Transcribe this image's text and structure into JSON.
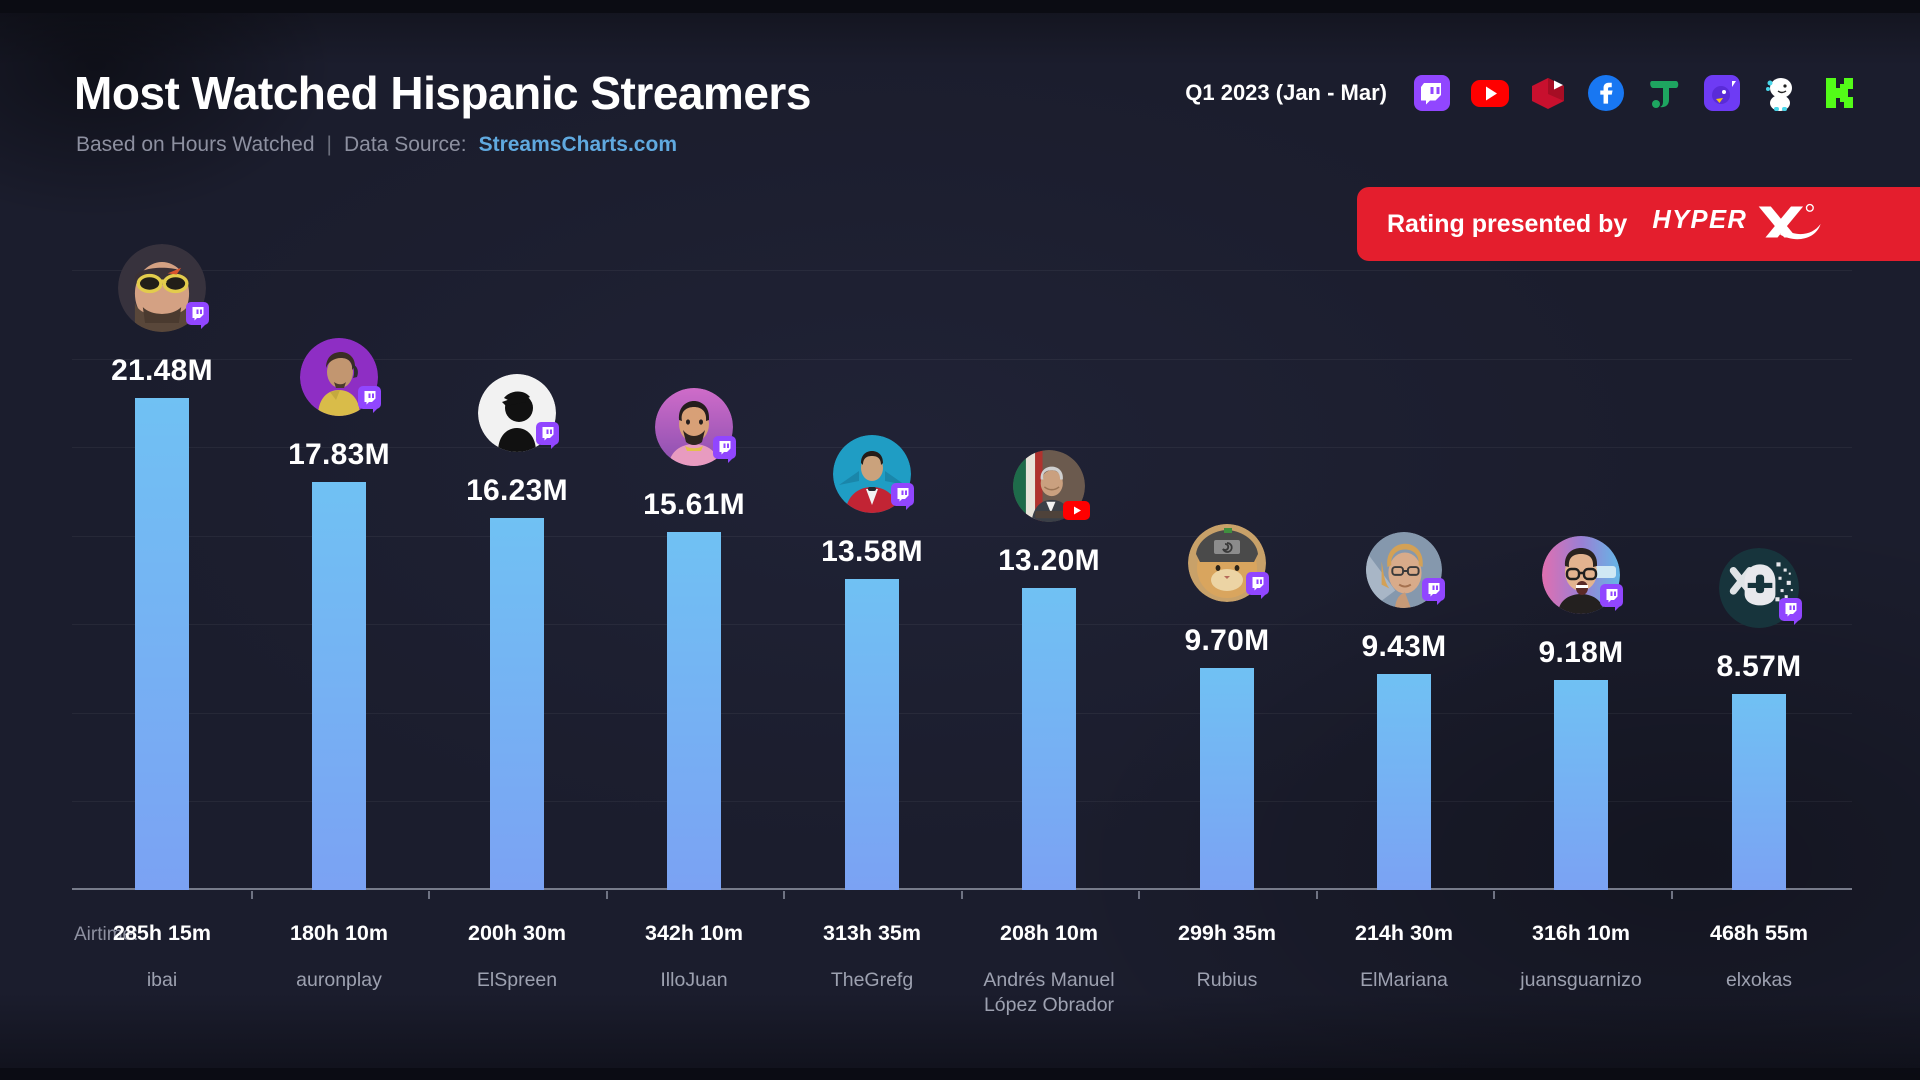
{
  "header": {
    "title": "Most Watched Hispanic Streamers",
    "subtitle_left": "Based on Hours Watched",
    "subtitle_separator": "|",
    "subtitle_source_label": "Data Source:",
    "subtitle_source": "StreamsCharts.com",
    "period": "Q1 2023 (Jan - Mar)",
    "platform_icons": [
      "twitch",
      "youtube",
      "youtube-gaming",
      "facebook",
      "trovo",
      "nimo-tv",
      "bigo-live",
      "kick"
    ]
  },
  "banner": {
    "text": "Rating presented by",
    "brand": "HyperX",
    "bg_color": "#E41E2D"
  },
  "chart_data": {
    "type": "bar",
    "title": "Most Watched Hispanic Streamers",
    "subtitle": "Based on Hours Watched",
    "unit": "Hours Watched (millions)",
    "ylim": [
      0,
      21.48
    ],
    "grid": true,
    "bar_color_top": "#70C1F3",
    "bar_color_bottom": "#7BA2F3",
    "airtime_label": "Airtime:",
    "categories": [
      "ibai",
      "auronplay",
      "ElSpreen",
      "IlloJuan",
      "TheGrefg",
      "Andrés Manuel López Obrador",
      "Rubius",
      "ElMariana",
      "juansguarnizo",
      "elxokas"
    ],
    "values": [
      21.48,
      17.83,
      16.23,
      15.61,
      13.58,
      13.2,
      9.7,
      9.43,
      9.18,
      8.57
    ],
    "streamers": [
      {
        "name": "ibai",
        "value": 21.48,
        "value_label": "21.48M",
        "airtime": "285h 15m",
        "platform": "twitch"
      },
      {
        "name": "auronplay",
        "value": 17.83,
        "value_label": "17.83M",
        "airtime": "180h 10m",
        "platform": "twitch"
      },
      {
        "name": "ElSpreen",
        "value": 16.23,
        "value_label": "16.23M",
        "airtime": "200h 30m",
        "platform": "twitch"
      },
      {
        "name": "IlloJuan",
        "value": 15.61,
        "value_label": "15.61M",
        "airtime": "342h 10m",
        "platform": "twitch"
      },
      {
        "name": "TheGrefg",
        "value": 13.58,
        "value_label": "13.58M",
        "airtime": "313h 35m",
        "platform": "twitch"
      },
      {
        "name": "Andrés Manuel López Obrador",
        "value": 13.2,
        "value_label": "13.20M",
        "airtime": "208h 10m",
        "platform": "youtube"
      },
      {
        "name": "Rubius",
        "value": 9.7,
        "value_label": "9.70M",
        "airtime": "299h 35m",
        "platform": "twitch"
      },
      {
        "name": "ElMariana",
        "value": 9.43,
        "value_label": "9.43M",
        "airtime": "214h 30m",
        "platform": "twitch"
      },
      {
        "name": "juansguarnizo",
        "value": 9.18,
        "value_label": "9.18M",
        "airtime": "316h 10m",
        "platform": "twitch"
      },
      {
        "name": "elxokas",
        "value": 8.57,
        "value_label": "8.57M",
        "airtime": "468h 55m",
        "platform": "twitch"
      }
    ]
  }
}
